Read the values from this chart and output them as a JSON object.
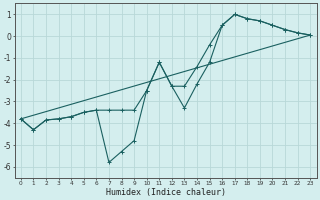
{
  "xlabel": "Humidex (Indice chaleur)",
  "bg_color": "#d4eeee",
  "grid_color": "#b8d8d8",
  "line_color": "#1a6060",
  "xlim": [
    -0.5,
    23.5
  ],
  "ylim": [
    -6.5,
    1.5
  ],
  "yticks": [
    -6,
    -5,
    -4,
    -3,
    -2,
    -1,
    0,
    1
  ],
  "xticks": [
    0,
    1,
    2,
    3,
    4,
    5,
    6,
    7,
    8,
    9,
    10,
    11,
    12,
    13,
    14,
    15,
    16,
    17,
    18,
    19,
    20,
    21,
    22,
    23
  ],
  "line1_x": [
    0,
    1,
    2,
    3,
    4,
    5,
    6,
    7,
    8,
    9,
    10,
    11,
    12,
    13,
    14,
    15,
    16,
    17,
    18,
    19,
    20,
    21,
    22,
    23
  ],
  "line1_y": [
    -3.8,
    -4.3,
    -3.85,
    -3.8,
    -3.7,
    -3.5,
    -3.4,
    -5.8,
    -5.3,
    -4.8,
    -2.5,
    -1.2,
    -2.3,
    -3.3,
    -2.2,
    -1.2,
    0.5,
    1.0,
    0.8,
    0.7,
    0.5,
    0.3,
    0.15,
    0.05
  ],
  "line2_x": [
    0,
    1,
    2,
    3,
    4,
    5,
    6,
    7,
    8,
    9,
    10,
    11,
    12,
    13,
    14,
    15,
    16,
    17,
    18,
    19,
    20,
    21,
    22,
    23
  ],
  "line2_y": [
    -3.8,
    -4.3,
    -3.85,
    -3.8,
    -3.7,
    -3.5,
    -3.4,
    -3.4,
    -3.4,
    -3.4,
    -2.5,
    -1.2,
    -2.3,
    -2.3,
    -1.4,
    -0.4,
    0.5,
    1.0,
    0.8,
    0.7,
    0.5,
    0.3,
    0.15,
    0.05
  ],
  "line3_x": [
    0,
    23
  ],
  "line3_y": [
    -3.8,
    0.05
  ]
}
